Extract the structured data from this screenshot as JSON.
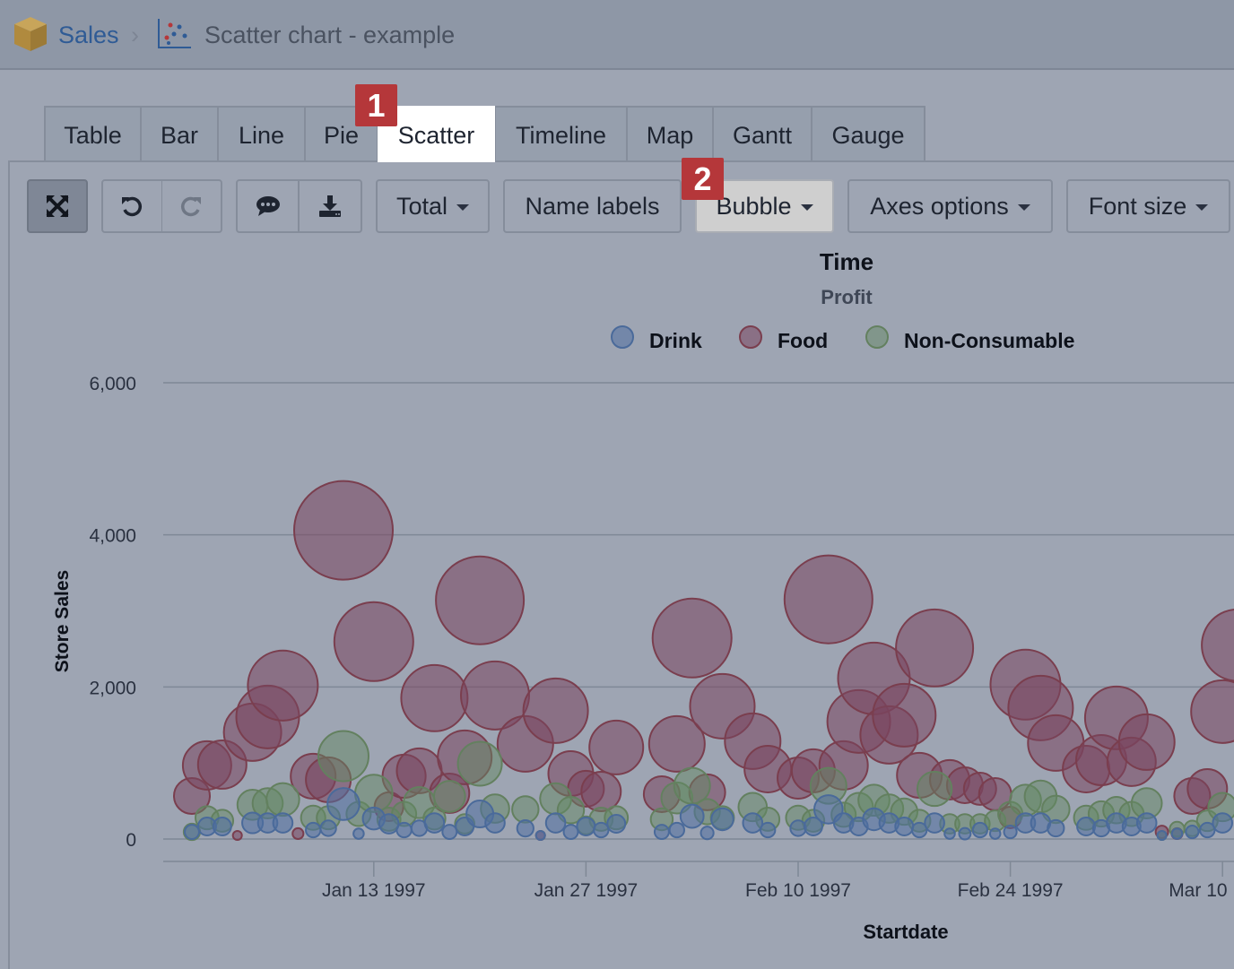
{
  "breadcrumb": {
    "root": "Sales",
    "separator": "›",
    "title": "Scatter chart - example"
  },
  "tabs": [
    {
      "label": "Table",
      "active": false
    },
    {
      "label": "Bar",
      "active": false
    },
    {
      "label": "Line",
      "active": false
    },
    {
      "label": "Pie",
      "active": false
    },
    {
      "label": "Scatter",
      "active": true
    },
    {
      "label": "Timeline",
      "active": false
    },
    {
      "label": "Map",
      "active": false
    },
    {
      "label": "Gantt",
      "active": false
    },
    {
      "label": "Gauge",
      "active": false
    }
  ],
  "badges": {
    "one": "1",
    "two": "2"
  },
  "toolbar": {
    "icons": [
      "fullscreen-icon",
      "undo-icon",
      "redo-icon",
      "comment-icon",
      "download-icon"
    ],
    "total": "Total",
    "name_labels": "Name labels",
    "bubble": "Bubble",
    "axes_options": "Axes options",
    "font_size": "Font size"
  },
  "colors": {
    "accent": "#2f5b95",
    "badge": "#b5373a",
    "drink": "#4a6a9a",
    "food": "#7a3e4e",
    "non_consumable": "#63805f"
  },
  "chart_data": {
    "type": "bubble",
    "title": "Time",
    "subtitle": "Profit",
    "xlabel": "Startdate",
    "ylabel": "Store Sales",
    "ylim": [
      0,
      6000
    ],
    "yticks": [
      "0",
      "2,000",
      "4,000",
      "6,000"
    ],
    "xticks": [
      {
        "date": "1997-01-13",
        "label": "Jan 13 1997"
      },
      {
        "date": "1997-01-27",
        "label": "Jan 27 1997"
      },
      {
        "date": "1997-02-10",
        "label": "Feb 10 1997"
      },
      {
        "date": "1997-02-24",
        "label": "Feb 24 1997"
      },
      {
        "date": "1997-03-10",
        "label": "Mar 10"
      }
    ],
    "grid": true,
    "legend_position": "top",
    "point_format": [
      "Startdate",
      "Store Sales",
      "Profit"
    ],
    "series": [
      {
        "name": "Drink",
        "color": "#4a6a9a",
        "points": [
          [
            "1997-01-01",
            94,
            38
          ],
          [
            "1997-01-02",
            165,
            60
          ],
          [
            "1997-01-03",
            165,
            60
          ],
          [
            "1997-01-05",
            212,
            80
          ],
          [
            "1997-01-06",
            212,
            70
          ],
          [
            "1997-01-07",
            212,
            70
          ],
          [
            "1997-01-09",
            118,
            40
          ],
          [
            "1997-01-10",
            142,
            45
          ],
          [
            "1997-01-11",
            460,
            190
          ],
          [
            "1997-01-12",
            70,
            20
          ],
          [
            "1997-01-13",
            270,
            90
          ],
          [
            "1997-01-14",
            200,
            70
          ],
          [
            "1997-01-15",
            118,
            40
          ],
          [
            "1997-01-16",
            142,
            45
          ],
          [
            "1997-01-17",
            212,
            70
          ],
          [
            "1997-01-18",
            94,
            38
          ],
          [
            "1997-01-19",
            165,
            60
          ],
          [
            "1997-01-20",
            330,
            135
          ],
          [
            "1997-01-21",
            212,
            70
          ],
          [
            "1997-01-23",
            140,
            50
          ],
          [
            "1997-01-24",
            47,
            15
          ],
          [
            "1997-01-25",
            212,
            70
          ],
          [
            "1997-01-26",
            94,
            38
          ],
          [
            "1997-01-27",
            165,
            60
          ],
          [
            "1997-01-28",
            118,
            40
          ],
          [
            "1997-01-29",
            200,
            60
          ],
          [
            "1997-02-01",
            94,
            38
          ],
          [
            "1997-02-02",
            118,
            40
          ],
          [
            "1997-02-03",
            300,
            100
          ],
          [
            "1997-02-04",
            80,
            30
          ],
          [
            "1997-02-05",
            260,
            90
          ],
          [
            "1997-02-07",
            212,
            70
          ],
          [
            "1997-02-08",
            118,
            40
          ],
          [
            "1997-02-10",
            142,
            45
          ],
          [
            "1997-02-11",
            165,
            60
          ],
          [
            "1997-02-12",
            390,
            150
          ],
          [
            "1997-02-13",
            212,
            70
          ],
          [
            "1997-02-14",
            165,
            60
          ],
          [
            "1997-02-15",
            260,
            90
          ],
          [
            "1997-02-16",
            212,
            70
          ],
          [
            "1997-02-17",
            165,
            60
          ],
          [
            "1997-02-18",
            118,
            40
          ],
          [
            "1997-02-19",
            212,
            70
          ],
          [
            "1997-02-20",
            70,
            20
          ],
          [
            "1997-02-21",
            70,
            25
          ],
          [
            "1997-02-22",
            118,
            40
          ],
          [
            "1997-02-23",
            70,
            20
          ],
          [
            "1997-02-24",
            94,
            30
          ],
          [
            "1997-02-25",
            212,
            70
          ],
          [
            "1997-02-26",
            212,
            70
          ],
          [
            "1997-02-27",
            142,
            50
          ],
          [
            "1997-03-01",
            165,
            60
          ],
          [
            "1997-03-02",
            142,
            50
          ],
          [
            "1997-03-03",
            212,
            70
          ],
          [
            "1997-03-04",
            165,
            60
          ],
          [
            "1997-03-05",
            212,
            70
          ],
          [
            "1997-03-06",
            47,
            15
          ],
          [
            "1997-03-07",
            70,
            20
          ],
          [
            "1997-03-08",
            94,
            30
          ],
          [
            "1997-03-09",
            118,
            40
          ],
          [
            "1997-03-10",
            212,
            70
          ]
        ]
      },
      {
        "name": "Food",
        "color": "#7a3e4e",
        "points": [
          [
            "1997-01-01",
            566,
            240
          ],
          [
            "1997-01-02",
            968,
            437
          ],
          [
            "1997-01-03",
            979,
            437
          ],
          [
            "1997-01-04",
            47,
            15
          ],
          [
            "1997-01-05",
            1404,
            614
          ],
          [
            "1997-01-06",
            1605,
            735
          ],
          [
            "1997-01-07",
            2018,
            913
          ],
          [
            "1997-01-08",
            71,
            22
          ],
          [
            "1997-01-09",
            826,
            375
          ],
          [
            "1997-01-10",
            779,
            375
          ],
          [
            "1997-01-11",
            4059,
            1815
          ],
          [
            "1997-01-13",
            2596,
            1162
          ],
          [
            "1997-01-14",
            425,
            154
          ],
          [
            "1997-01-15",
            826,
            346
          ],
          [
            "1997-01-16",
            897,
            375
          ],
          [
            "1997-01-17",
            1853,
            821
          ],
          [
            "1997-01-18",
            602,
            290
          ],
          [
            "1997-01-19",
            1074,
            540
          ],
          [
            "1997-01-20",
            3139,
            1441
          ],
          [
            "1997-01-21",
            1888,
            866
          ],
          [
            "1997-01-23",
            1251,
            577
          ],
          [
            "1997-01-24",
            47,
            15
          ],
          [
            "1997-01-25",
            1687,
            778
          ],
          [
            "1997-01-26",
            861,
            375
          ],
          [
            "1997-01-27",
            661,
            240
          ],
          [
            "1997-01-28",
            625,
            290
          ],
          [
            "1997-01-29",
            1204,
            540
          ],
          [
            "1997-02-01",
            590,
            240
          ],
          [
            "1997-02-02",
            1251,
            577
          ],
          [
            "1997-02-03",
            2643,
            1162
          ],
          [
            "1997-02-04",
            614,
            240
          ],
          [
            "1997-02-05",
            1746,
            778
          ],
          [
            "1997-02-07",
            1286,
            577
          ],
          [
            "1997-02-08",
            920,
            406
          ],
          [
            "1997-02-10",
            802,
            317
          ],
          [
            "1997-02-11",
            897,
            346
          ],
          [
            "1997-02-12",
            3151,
            1441
          ],
          [
            "1997-02-13",
            968,
            437
          ],
          [
            "1997-02-14",
            1546,
            735
          ],
          [
            "1997-02-15",
            2112,
            960
          ],
          [
            "1997-02-16",
            1369,
            614
          ],
          [
            "1997-02-17",
            1628,
            735
          ],
          [
            "1997-02-18",
            838,
            375
          ],
          [
            "1997-02-19",
            2513,
            1109
          ],
          [
            "1997-02-20",
            779,
            290
          ],
          [
            "1997-02-21",
            708,
            240
          ],
          [
            "1997-02-22",
            661,
            194
          ],
          [
            "1997-02-23",
            590,
            194
          ],
          [
            "1997-02-24",
            283,
            86
          ],
          [
            "1997-02-25",
            2030,
            913
          ],
          [
            "1997-02-26",
            1723,
            778
          ],
          [
            "1997-02-27",
            1263,
            577
          ],
          [
            "1997-03-01",
            920,
            406
          ],
          [
            "1997-03-02",
            1038,
            470
          ],
          [
            "1997-03-03",
            1593,
            735
          ],
          [
            "1997-03-04",
            1015,
            437
          ],
          [
            "1997-03-05",
            1274,
            577
          ],
          [
            "1997-03-06",
            94,
            29
          ],
          [
            "1997-03-07",
            71,
            22
          ],
          [
            "1997-03-08",
            566,
            240
          ],
          [
            "1997-03-09",
            661,
            290
          ],
          [
            "1997-03-10",
            1676,
            735
          ],
          [
            "1997-03-11",
            2549,
            960
          ]
        ]
      },
      {
        "name": "Non-Consumable",
        "color": "#63805f",
        "points": [
          [
            "1997-01-01",
            94,
            50
          ],
          [
            "1997-01-02",
            280,
            100
          ],
          [
            "1997-01-03",
            240,
            90
          ],
          [
            "1997-01-05",
            450,
            170
          ],
          [
            "1997-01-06",
            470,
            170
          ],
          [
            "1997-01-07",
            520,
            200
          ],
          [
            "1997-01-09",
            280,
            110
          ],
          [
            "1997-01-10",
            280,
            100
          ],
          [
            "1997-01-11",
            1090,
            470
          ],
          [
            "1997-01-12",
            330,
            110
          ],
          [
            "1997-01-13",
            600,
            260
          ],
          [
            "1997-01-14",
            260,
            100
          ],
          [
            "1997-01-15",
            330,
            110
          ],
          [
            "1997-01-16",
            480,
            180
          ],
          [
            "1997-01-17",
            270,
            90
          ],
          [
            "1997-01-18",
            560,
            180
          ],
          [
            "1997-01-19",
            200,
            70
          ],
          [
            "1997-01-20",
            990,
            360
          ],
          [
            "1997-01-21",
            400,
            150
          ],
          [
            "1997-01-23",
            390,
            130
          ],
          [
            "1997-01-25",
            530,
            180
          ],
          [
            "1997-01-26",
            380,
            130
          ],
          [
            "1997-01-27",
            180,
            60
          ],
          [
            "1997-01-28",
            260,
            100
          ],
          [
            "1997-01-29",
            280,
            100
          ],
          [
            "1997-02-01",
            260,
            90
          ],
          [
            "1997-02-02",
            540,
            180
          ],
          [
            "1997-02-03",
            700,
            240
          ],
          [
            "1997-02-04",
            360,
            120
          ],
          [
            "1997-02-05",
            280,
            100
          ],
          [
            "1997-02-07",
            420,
            150
          ],
          [
            "1997-02-08",
            260,
            100
          ],
          [
            "1997-02-10",
            280,
            110
          ],
          [
            "1997-02-11",
            240,
            90
          ],
          [
            "1997-02-12",
            700,
            240
          ],
          [
            "1997-02-13",
            320,
            110
          ],
          [
            "1997-02-14",
            420,
            150
          ],
          [
            "1997-02-15",
            510,
            180
          ],
          [
            "1997-02-16",
            400,
            150
          ],
          [
            "1997-02-17",
            360,
            130
          ],
          [
            "1997-02-18",
            240,
            90
          ],
          [
            "1997-02-19",
            660,
            220
          ],
          [
            "1997-02-20",
            200,
            70
          ],
          [
            "1997-02-21",
            200,
            70
          ],
          [
            "1997-02-22",
            200,
            70
          ],
          [
            "1997-02-23",
            240,
            80
          ],
          [
            "1997-02-24",
            330,
            110
          ],
          [
            "1997-02-25",
            510,
            180
          ],
          [
            "1997-02-26",
            560,
            190
          ],
          [
            "1997-02-27",
            390,
            140
          ],
          [
            "1997-03-01",
            280,
            110
          ],
          [
            "1997-03-02",
            330,
            120
          ],
          [
            "1997-03-03",
            380,
            130
          ],
          [
            "1997-03-04",
            330,
            110
          ],
          [
            "1997-03-05",
            470,
            170
          ],
          [
            "1997-03-06",
            47,
            15
          ],
          [
            "1997-03-07",
            130,
            40
          ],
          [
            "1997-03-08",
            140,
            45
          ],
          [
            "1997-03-09",
            240,
            80
          ],
          [
            "1997-03-10",
            420,
            150
          ]
        ]
      }
    ]
  }
}
